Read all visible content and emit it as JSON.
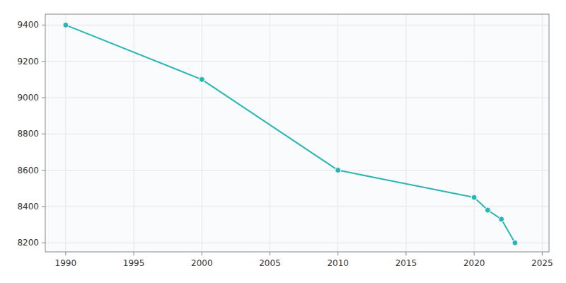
{
  "chart_data": {
    "type": "line",
    "x": [
      1990,
      2000,
      2010,
      2020,
      2021,
      2022,
      2023
    ],
    "values": [
      9400,
      9100,
      8600,
      8450,
      8380,
      8330,
      8200
    ],
    "color": "#2ab5b5",
    "marker": "circle",
    "xlim": [
      1988.5,
      2025.5
    ],
    "ylim": [
      8150,
      9460
    ],
    "xticks": [
      1990,
      1995,
      2000,
      2005,
      2010,
      2015,
      2020,
      2025
    ],
    "yticks": [
      8200,
      8400,
      8600,
      8800,
      9000,
      9200,
      9400
    ],
    "grid": true
  }
}
